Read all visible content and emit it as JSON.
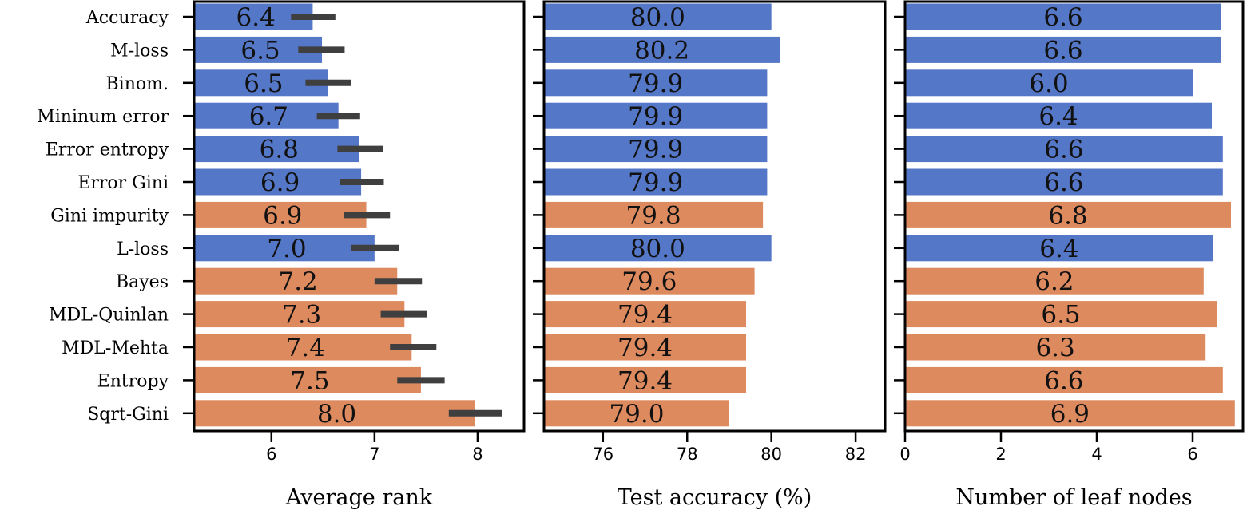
{
  "colors": {
    "blue": "#5577c7",
    "orange": "#de8a5f",
    "errorbar": "#3f3f3f",
    "frame": "#000000"
  },
  "chart_data": {
    "type": "bar",
    "orientation": "horizontal",
    "categories": [
      "Accuracy",
      "M-loss",
      "Binom.",
      "Mininum error",
      "Error entropy",
      "Error Gini",
      "Gini impurity",
      "L-loss",
      "Bayes",
      "MDL-Quinlan",
      "MDL-Mehta",
      "Entropy",
      "Sqrt-Gini"
    ],
    "bar_colors": [
      "blue",
      "blue",
      "blue",
      "blue",
      "blue",
      "blue",
      "orange",
      "blue",
      "orange",
      "orange",
      "orange",
      "orange",
      "orange"
    ],
    "panels": [
      {
        "xlabel": "Average rank",
        "xlim": [
          5.25,
          8.45
        ],
        "xticks": [
          6,
          7,
          8
        ],
        "xtick_labels": [
          "6",
          "7",
          "8"
        ],
        "values": [
          6.4,
          6.49,
          6.55,
          6.65,
          6.85,
          6.87,
          6.92,
          7.0,
          7.22,
          7.29,
          7.36,
          7.45,
          7.97
        ],
        "value_labels": [
          "6.4",
          "6.5",
          "6.5",
          "6.7",
          "6.8",
          "6.9",
          "6.9",
          "7.0",
          "7.2",
          "7.3",
          "7.4",
          "7.5",
          "8.0"
        ],
        "error_low": [
          6.19,
          6.26,
          6.33,
          6.44,
          6.64,
          6.66,
          6.7,
          6.77,
          7.0,
          7.06,
          7.15,
          7.22,
          7.72
        ],
        "error_high": [
          6.62,
          6.71,
          6.77,
          6.86,
          7.08,
          7.09,
          7.15,
          7.24,
          7.46,
          7.51,
          7.6,
          7.68,
          8.24
        ]
      },
      {
        "xlabel": "Test accuracy (%)",
        "xlim": [
          74.6,
          82.7
        ],
        "xticks": [
          76,
          78,
          80,
          82
        ],
        "xtick_labels": [
          "76",
          "78",
          "80",
          "82"
        ],
        "values": [
          80.0,
          80.2,
          79.9,
          79.9,
          79.9,
          79.9,
          79.8,
          80.0,
          79.6,
          79.4,
          79.4,
          79.4,
          79.0
        ],
        "value_labels": [
          "80.0",
          "80.2",
          "79.9",
          "79.9",
          "79.9",
          "79.9",
          "79.8",
          "80.0",
          "79.6",
          "79.4",
          "79.4",
          "79.4",
          "79.0"
        ]
      },
      {
        "xlabel": "Number of leaf nodes",
        "xlim": [
          0,
          7.05
        ],
        "xticks": [
          0,
          2,
          4,
          6
        ],
        "xtick_labels": [
          "0",
          "2",
          "4",
          "6"
        ],
        "values": [
          6.6,
          6.6,
          6.0,
          6.4,
          6.63,
          6.63,
          6.8,
          6.43,
          6.23,
          6.5,
          6.27,
          6.63,
          6.88
        ],
        "value_labels": [
          "6.6",
          "6.6",
          "6.0",
          "6.4",
          "6.6",
          "6.6",
          "6.8",
          "6.4",
          "6.2",
          "6.5",
          "6.3",
          "6.6",
          "6.9"
        ]
      }
    ]
  }
}
